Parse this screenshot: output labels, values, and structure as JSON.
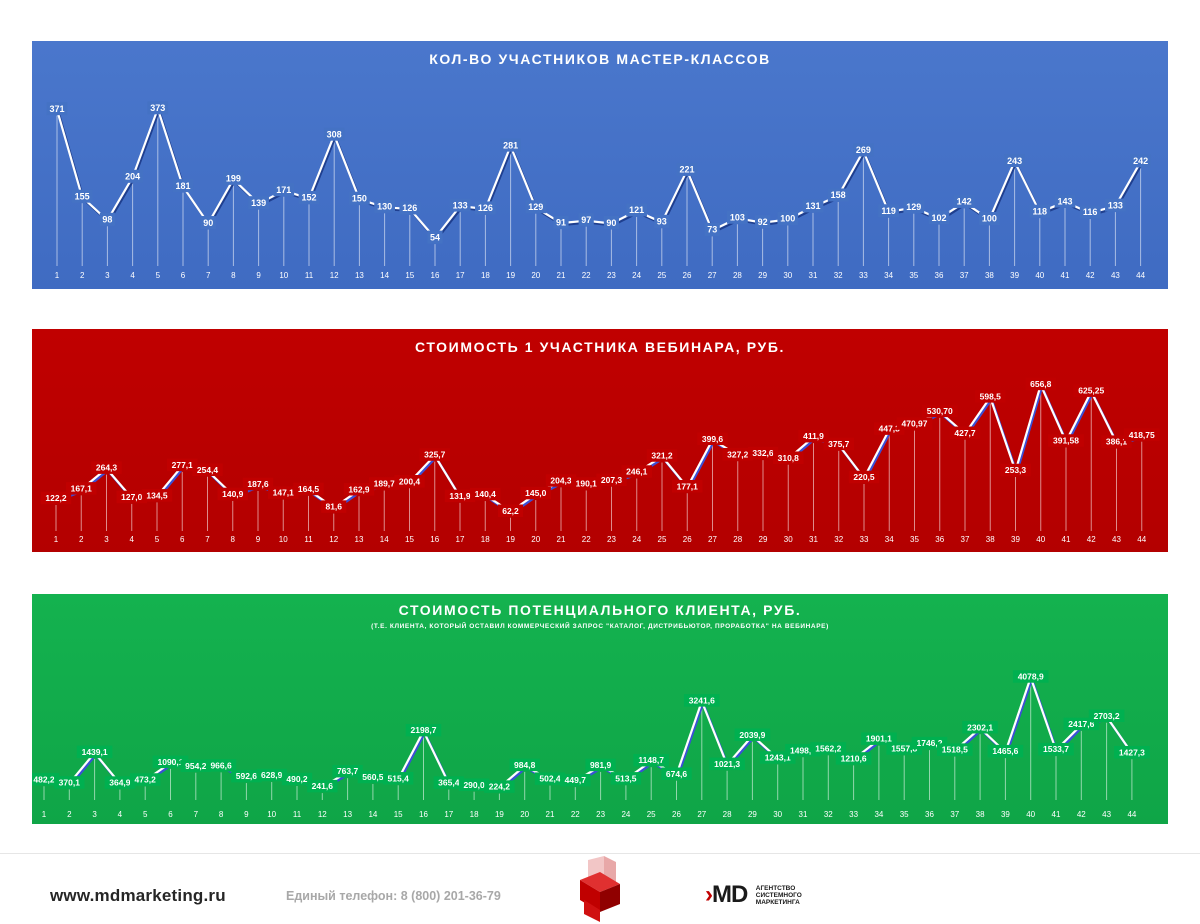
{
  "chart_data": [
    {
      "type": "line",
      "title": "КОЛ-ВО УЧАСТНИКОВ МАСТЕР-КЛАССОВ",
      "subtitle": "",
      "categories": [
        "1",
        "2",
        "3",
        "4",
        "5",
        "6",
        "7",
        "8",
        "9",
        "10",
        "11",
        "12",
        "13",
        "14",
        "15",
        "16",
        "17",
        "18",
        "19",
        "20",
        "21",
        "22",
        "23",
        "24",
        "25",
        "26",
        "27",
        "28",
        "29",
        "30",
        "31",
        "32",
        "33",
        "34",
        "35",
        "36",
        "37",
        "38",
        "39",
        "40",
        "41",
        "42",
        "43",
        "44"
      ],
      "values": [
        371,
        155,
        98,
        204,
        373,
        181,
        90,
        199,
        139,
        171,
        152,
        308,
        150,
        130,
        126,
        54,
        133,
        126,
        281,
        129,
        91,
        97,
        90,
        121,
        93,
        221,
        73,
        103,
        92,
        100,
        131,
        158,
        269,
        119,
        129,
        102,
        142,
        100,
        243,
        118,
        143,
        116,
        133,
        242
      ],
      "labels": [
        "371",
        "155",
        "98",
        "204",
        "373",
        "181",
        "90",
        "199",
        "139",
        "171",
        "152",
        "308",
        "150",
        "130",
        "126",
        "54",
        "133",
        "126",
        "281",
        "129",
        "91",
        "97",
        "90",
        "121",
        "93",
        "221",
        "73",
        "103",
        "92",
        "100",
        "131",
        "158",
        "269",
        "119",
        "129",
        "102",
        "142",
        "100",
        "243",
        "118",
        "143",
        "116",
        "133",
        "242"
      ],
      "ylim": [
        0,
        380
      ],
      "grid": false,
      "colors": {
        "background": "#4472c4",
        "line": "#ffffff",
        "shadow": "#1f3f8f"
      }
    },
    {
      "type": "line",
      "title": "СТОИМОСТЬ 1 УЧАСТНИКА ВЕБИНАРА, РУБ.",
      "subtitle": "",
      "categories": [
        "1",
        "2",
        "3",
        "4",
        "5",
        "6",
        "7",
        "8",
        "9",
        "10",
        "11",
        "12",
        "13",
        "14",
        "15",
        "16",
        "17",
        "18",
        "19",
        "20",
        "21",
        "22",
        "23",
        "24",
        "25",
        "26",
        "27",
        "28",
        "29",
        "30",
        "31",
        "32",
        "33",
        "34",
        "35",
        "36",
        "37",
        "38",
        "39",
        "40",
        "41",
        "42",
        "43",
        "44"
      ],
      "values": [
        122.2,
        167.1,
        264.3,
        127.0,
        134.5,
        277.1,
        254.4,
        140.9,
        187.6,
        147.1,
        164.5,
        81.6,
        162.9,
        189.7,
        200.4,
        325.7,
        131.9,
        140.4,
        62.2,
        145.0,
        204.3,
        190.1,
        207.3,
        246.1,
        321.2,
        177.1,
        399.6,
        327.2,
        332.6,
        310.8,
        411.9,
        375.7,
        220.5,
        447.3,
        470.97,
        530.7,
        427.7,
        598.5,
        253.3,
        656.8,
        391.58,
        625.25,
        386.1,
        418.75
      ],
      "labels": [
        "122,2",
        "167,1",
        "264,3",
        "127,0",
        "134,5",
        "277,1",
        "254,4",
        "140,9",
        "187,6",
        "147,1",
        "164,5",
        "81,6",
        "162,9",
        "189,7",
        "200,4",
        "325,7",
        "131,9",
        "140,4",
        "62,2",
        "145,0",
        "204,3",
        "190,1",
        "207,3",
        "246,1",
        "321,2",
        "177,1",
        "399,6",
        "327,2",
        "332,6",
        "310,8",
        "411,9",
        "375,7",
        "220,5",
        "447,3",
        "470,97",
        "530,70",
        "427,7",
        "598,5",
        "253,3",
        "656,8",
        "391,58",
        "625,25",
        "386,1",
        "418,75"
      ],
      "ylim": [
        0,
        680
      ],
      "grid": false,
      "colors": {
        "background": "#c00000",
        "line": "#ffffff",
        "shadow": "#3b4fd6"
      }
    },
    {
      "type": "line",
      "title": "СТОИМОСТЬ ПОТЕНЦИАЛЬНОГО КЛИЕНТА, РУБ.",
      "subtitle": "(Т.Е. КЛИЕНТА, КОТОРЫЙ ОСТАВИЛ КОММЕРЧЕСКИЙ ЗАПРОС \"КАТАЛОГ, ДИСТРИБЬЮТОР, ПРОРАБОТКА\" НА ВЕБИНАРЕ)",
      "categories": [
        "1",
        "2",
        "3",
        "4",
        "5",
        "6",
        "7",
        "8",
        "9",
        "10",
        "11",
        "12",
        "13",
        "14",
        "15",
        "16",
        "17",
        "18",
        "19",
        "20",
        "21",
        "22",
        "23",
        "24",
        "25",
        "26",
        "27",
        "28",
        "29",
        "30",
        "31",
        "32",
        "33",
        "34",
        "35",
        "36",
        "37",
        "38",
        "39",
        "40",
        "41",
        "42",
        "43",
        "44"
      ],
      "values": [
        482.2,
        370.1,
        1439.1,
        364.9,
        473.2,
        1090.1,
        954.2,
        966.6,
        592.6,
        628.9,
        490.2,
        241.6,
        763.7,
        560.5,
        515.4,
        2198.7,
        365.4,
        290.0,
        224.2,
        984.8,
        502.4,
        449.7,
        981.9,
        513.5,
        1148.7,
        674.6,
        3241.6,
        1021.3,
        2039.9,
        1243.1,
        1498.1,
        1562.2,
        1210.6,
        1901.1,
        1557.8,
        1746.2,
        1518.5,
        2302.1,
        1465.6,
        4078.9,
        1533.7,
        2417.6,
        2703.2,
        1427.3
      ],
      "labels": [
        "482,2",
        "370,1",
        "1439,1",
        "364,9",
        "473,2",
        "1090,1",
        "954,2",
        "966,6",
        "592,6",
        "628,9",
        "490,2",
        "241,6",
        "763,7",
        "560,5",
        "515,4",
        "2198,7",
        "365,4",
        "290,0",
        "224,2",
        "984,8",
        "502,4",
        "449,7",
        "981,9",
        "513,5",
        "1148,7",
        "674,6",
        "3241,6",
        "1021,3",
        "2039,9",
        "1243,1",
        "1498,1",
        "1562,2",
        "1210,6",
        "1901,1",
        "1557,8",
        "1746,2",
        "1518,5",
        "2302,1",
        "1465,6",
        "4078,9",
        "1533,7",
        "2417,6",
        "2703,2",
        "1427,3"
      ],
      "ylim": [
        0,
        4200
      ],
      "grid": false,
      "colors": {
        "background": "#00b050",
        "line": "#ffffff",
        "shadow": "#3b4fd6"
      }
    }
  ],
  "footer": {
    "site": "www.mdmarketing.ru",
    "phone": "Единый телефон: 8 (800) 201-36-79",
    "brand_logo_main": "MD",
    "brand_line1": "АГЕНТСТВО",
    "brand_line2": "СИСТЕМНОГО",
    "brand_line3": "МАРКЕТИНГА"
  }
}
